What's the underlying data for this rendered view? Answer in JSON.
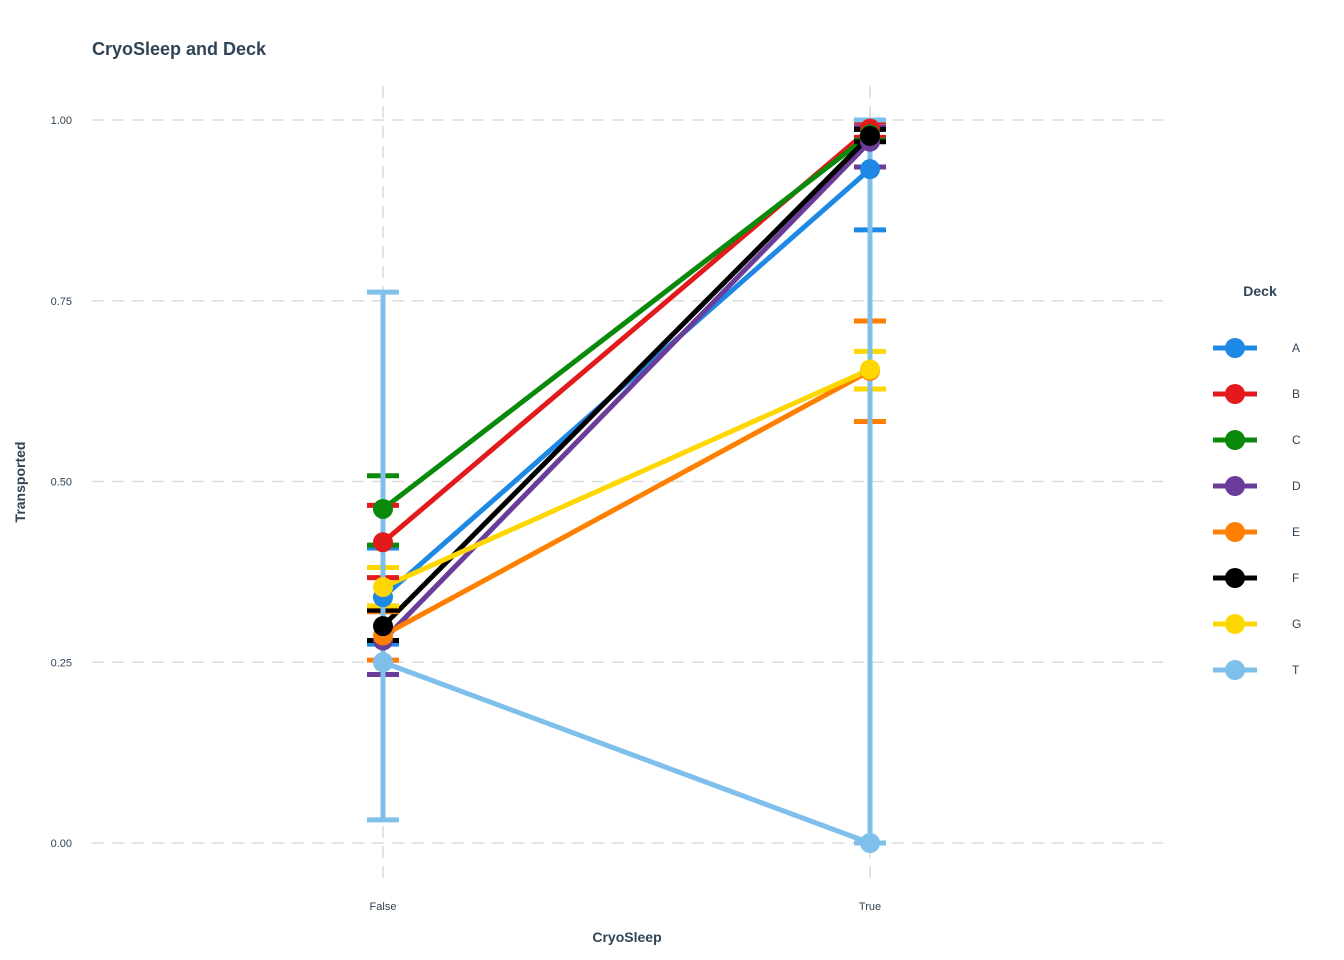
{
  "chart_data": {
    "type": "line",
    "title": "CryoSleep and Deck",
    "xlabel": "CryoSleep",
    "ylabel": "Transported",
    "categories": [
      "False",
      "True"
    ],
    "ylim": [
      0,
      1
    ],
    "yticks": [
      "0.00",
      "0.25",
      "0.50",
      "0.75",
      "1.00"
    ],
    "grid": true,
    "legend": {
      "title": "Deck",
      "position": "right"
    },
    "series": [
      {
        "name": "A",
        "color": "#1e88e5",
        "values": [
          0.34,
          0.932
        ],
        "lower": [
          0.275,
          0.848
        ],
        "upper": [
          0.408,
          1.0
        ]
      },
      {
        "name": "B",
        "color": "#e31a1c",
        "values": [
          0.416,
          0.988
        ],
        "lower": [
          0.367,
          0.976
        ],
        "upper": [
          0.467,
          0.997
        ]
      },
      {
        "name": "C",
        "color": "#0a8a0a",
        "values": [
          0.462,
          0.98
        ],
        "lower": [
          0.412,
          0.972
        ],
        "upper": [
          0.508,
          0.988
        ]
      },
      {
        "name": "D",
        "color": "#6a3d9a",
        "values": [
          0.28,
          0.97
        ],
        "lower": [
          0.233,
          0.935
        ],
        "upper": [
          0.32,
          0.99
        ]
      },
      {
        "name": "E",
        "color": "#ff7f00",
        "values": [
          0.287,
          0.653
        ],
        "lower": [
          0.253,
          0.583
        ],
        "upper": [
          0.32,
          0.722
        ]
      },
      {
        "name": "F",
        "color": "#000000",
        "values": [
          0.3,
          0.978
        ],
        "lower": [
          0.28,
          0.97
        ],
        "upper": [
          0.322,
          0.987
        ]
      },
      {
        "name": "G",
        "color": "#ffd700",
        "values": [
          0.354,
          0.655
        ],
        "lower": [
          0.328,
          0.628
        ],
        "upper": [
          0.381,
          0.68
        ]
      },
      {
        "name": "T",
        "color": "#7fbfeb",
        "values": [
          0.25,
          0.0
        ],
        "lower": [
          0.032,
          0.0
        ],
        "upper": [
          0.762,
          1.0
        ]
      }
    ]
  }
}
